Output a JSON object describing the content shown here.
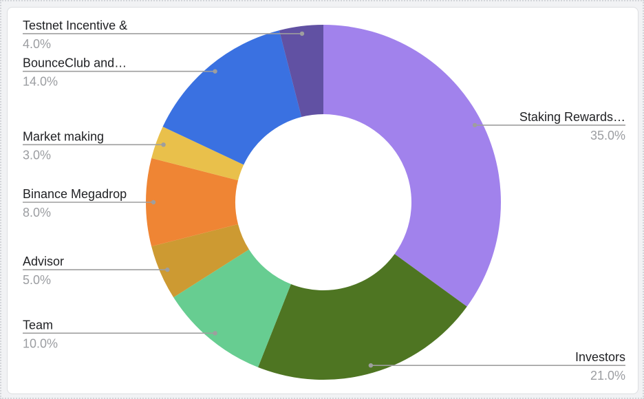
{
  "page": {
    "background_color": "#f1f2f4",
    "card_background_color": "#ffffff",
    "card_border_color": "#dcdee1"
  },
  "chart_data": {
    "type": "pie",
    "subtype": "donut",
    "title": "",
    "direction": "clockwise",
    "start_angle_deg": 0,
    "legend_position": "labeled-callouts",
    "callout_line_color": "#9e9e9e",
    "callout_dot_color": "#9e9e9e",
    "label_color": "#1f2023",
    "pct_color": "#9b9da1",
    "slices": [
      {
        "label": "Staking Rewards…",
        "pct_label": "35.0%",
        "value": 35.0,
        "color": "#a182ec"
      },
      {
        "label": "Investors",
        "pct_label": "21.0%",
        "value": 21.0,
        "color": "#4e7522"
      },
      {
        "label": "Team",
        "pct_label": "10.0%",
        "value": 10.0,
        "color": "#67cd91"
      },
      {
        "label": "Advisor",
        "pct_label": "5.0%",
        "value": 5.0,
        "color": "#cd9a32"
      },
      {
        "label": "Binance Megadrop",
        "pct_label": "8.0%",
        "value": 8.0,
        "color": "#ef8534"
      },
      {
        "label": "Market making",
        "pct_label": "3.0%",
        "value": 3.0,
        "color": "#e9c04b"
      },
      {
        "label": "BounceClub and…",
        "pct_label": "14.0%",
        "value": 14.0,
        "color": "#3a71e1"
      },
      {
        "label": "Testnet Incentive &",
        "pct_label": "4.0%",
        "value": 4.0,
        "color": "#6151a3"
      }
    ]
  }
}
